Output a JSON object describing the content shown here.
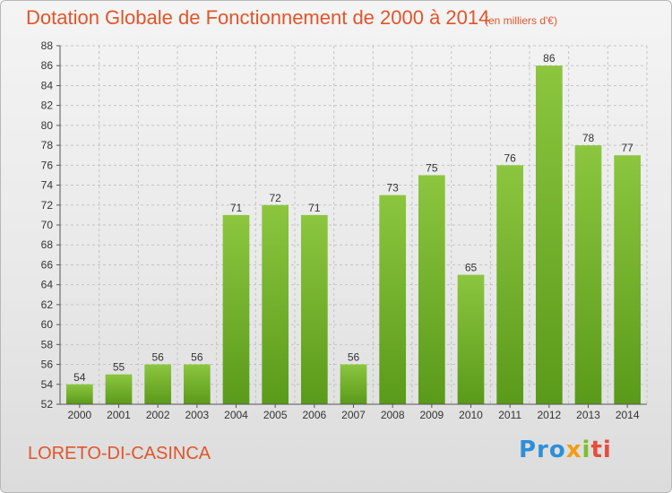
{
  "chart_data": {
    "type": "bar",
    "title": "Dotation Globale de Fonctionnement de 2000 à 2014",
    "subtitle": "(en milliers d'€)",
    "xlabel": "",
    "ylabel": "",
    "categories": [
      "2000",
      "2001",
      "2002",
      "2003",
      "2004",
      "2005",
      "2006",
      "2007",
      "2008",
      "2009",
      "2010",
      "2011",
      "2012",
      "2013",
      "2014"
    ],
    "values": [
      54,
      55,
      56,
      56,
      71,
      72,
      71,
      56,
      73,
      75,
      65,
      76,
      86,
      78,
      77
    ],
    "ylim": [
      52,
      88
    ],
    "ytick_step": 2,
    "grid": true,
    "bar_color": "#8cc63f",
    "bar_color_dark": "#5a9a1a"
  },
  "footer": {
    "commune": "LORETO-DI-CASINCA",
    "logo": {
      "p1": "Pro",
      "p2": "x",
      "p3": "i",
      "p4": "ti"
    }
  }
}
